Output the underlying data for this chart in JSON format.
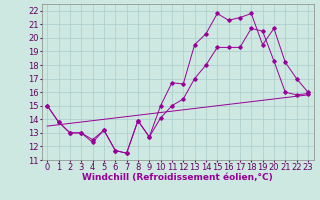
{
  "xlabel": "Windchill (Refroidissement éolien,°C)",
  "background_color": "#cce8e0",
  "grid_color": "#aacccc",
  "line_color": "#990099",
  "xlim": [
    -0.5,
    23.5
  ],
  "ylim": [
    11,
    22.5
  ],
  "yticks": [
    11,
    12,
    13,
    14,
    15,
    16,
    17,
    18,
    19,
    20,
    21,
    22
  ],
  "xticks": [
    0,
    1,
    2,
    3,
    4,
    5,
    6,
    7,
    8,
    9,
    10,
    11,
    12,
    13,
    14,
    15,
    16,
    17,
    18,
    19,
    20,
    21,
    22,
    23
  ],
  "line1_x": [
    0,
    1,
    2,
    3,
    4,
    5,
    6,
    7,
    8,
    9,
    10,
    11,
    12,
    13,
    14,
    15,
    16,
    17,
    18,
    19,
    20,
    21,
    22,
    23
  ],
  "line1_y": [
    15.0,
    13.8,
    13.0,
    13.0,
    12.5,
    13.2,
    11.7,
    11.5,
    13.9,
    12.7,
    15.0,
    16.7,
    16.6,
    19.5,
    20.3,
    21.8,
    21.3,
    21.5,
    21.8,
    19.5,
    20.7,
    18.2,
    17.0,
    16.0
  ],
  "line2_x": [
    0,
    1,
    2,
    3,
    4,
    5,
    6,
    7,
    8,
    9,
    10,
    11,
    12,
    13,
    14,
    15,
    16,
    17,
    18,
    19,
    20,
    21,
    22,
    23
  ],
  "line2_y": [
    15.0,
    13.8,
    13.0,
    13.0,
    12.3,
    13.2,
    11.7,
    11.5,
    13.9,
    12.7,
    14.1,
    15.0,
    15.5,
    17.0,
    18.0,
    19.3,
    19.3,
    19.3,
    20.7,
    20.5,
    18.3,
    16.0,
    15.8,
    15.9
  ],
  "line3_x": [
    0,
    23
  ],
  "line3_y": [
    13.5,
    15.8
  ],
  "xlabel_fontsize": 6.5,
  "tick_fontsize": 6.0
}
